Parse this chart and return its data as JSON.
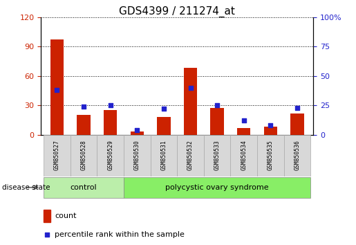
{
  "title": "GDS4399 / 211274_at",
  "samples": [
    "GSM850527",
    "GSM850528",
    "GSM850529",
    "GSM850530",
    "GSM850531",
    "GSM850532",
    "GSM850533",
    "GSM850534",
    "GSM850535",
    "GSM850536"
  ],
  "count": [
    97,
    20,
    25,
    3,
    18,
    68,
    27,
    7,
    8,
    22
  ],
  "percentile": [
    38,
    24,
    25,
    4,
    22,
    40,
    25,
    12,
    8,
    23
  ],
  "left_ylim": [
    0,
    120
  ],
  "left_yticks": [
    0,
    30,
    60,
    90,
    120
  ],
  "right_ylim": [
    0,
    100
  ],
  "right_yticks": [
    0,
    25,
    50,
    75,
    100
  ],
  "right_yticklabels": [
    "0",
    "25",
    "50",
    "75",
    "100%"
  ],
  "bar_color": "#cc2200",
  "square_color": "#2222cc",
  "left_tick_color": "#cc2200",
  "right_tick_color": "#2222cc",
  "title_fontsize": 11,
  "group_labels": [
    "control",
    "polycystic ovary syndrome"
  ],
  "group_colors_ctrl": "#bbeeaa",
  "group_colors_poly": "#88ee66",
  "disease_state_label": "disease state",
  "legend_count_label": "count",
  "legend_percentile_label": "percentile rank within the sample",
  "bar_width": 0.5,
  "square_size": 25,
  "tick_area_bg": "#d8d8d8",
  "tick_area_border": "#aaaaaa"
}
